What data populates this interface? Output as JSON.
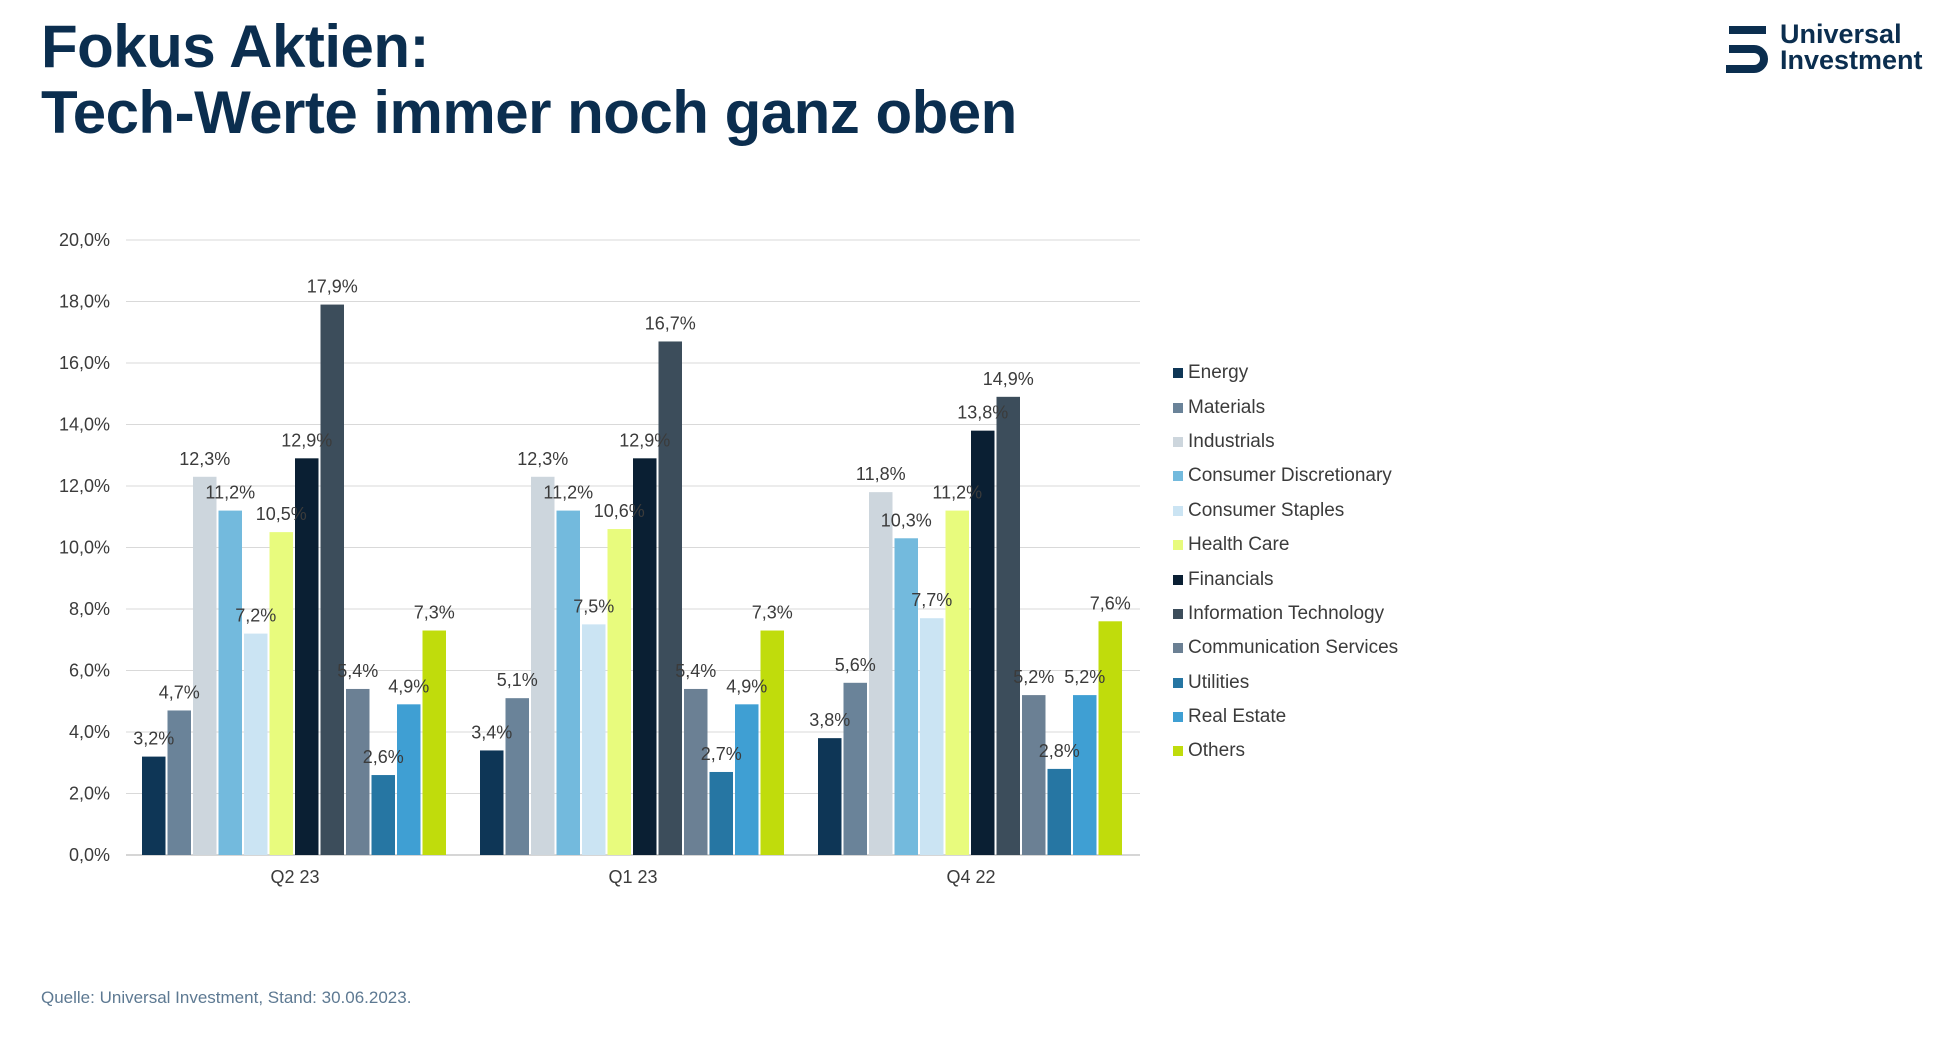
{
  "header": {
    "title_line1": "Fokus Aktien:",
    "title_line2": "Tech-Werte immer noch ganz oben"
  },
  "logo": {
    "line1": "Universal",
    "line2": "Investment",
    "icon": "universal-investment-logo-mark"
  },
  "footer": {
    "source": "Quelle: Universal Investment, Stand: 30.06.2023."
  },
  "chart_data": {
    "type": "bar",
    "categories": [
      "Q2 23",
      "Q1 23",
      "Q4 22"
    ],
    "ylim": [
      0,
      20
    ],
    "yticks": [
      "0,0%",
      "2,0%",
      "4,0%",
      "6,0%",
      "8,0%",
      "10,0%",
      "12,0%",
      "14,0%",
      "16,0%",
      "18,0%",
      "20,0%"
    ],
    "grid": true,
    "legend_position": "right",
    "series": [
      {
        "name": "Energy",
        "color": "#0e3656",
        "values": [
          3.2,
          3.4,
          3.8
        ],
        "labels": [
          "3,2%",
          "3,4%",
          "3,8%"
        ]
      },
      {
        "name": "Materials",
        "color": "#6a8399",
        "values": [
          4.7,
          5.1,
          5.6
        ],
        "labels": [
          "4,7%",
          "5,1%",
          "5,6%"
        ]
      },
      {
        "name": "Industrials",
        "color": "#cdd6dd",
        "values": [
          12.3,
          12.3,
          11.8
        ],
        "labels": [
          "12,3%",
          "12,3%",
          "11,8%"
        ]
      },
      {
        "name": "Consumer Discretionary",
        "color": "#73badd",
        "values": [
          11.2,
          11.2,
          10.3
        ],
        "labels": [
          "11,2%",
          "11,2%",
          "10,3%"
        ]
      },
      {
        "name": "Consumer Staples",
        "color": "#cbe4f3",
        "values": [
          7.2,
          7.5,
          7.7
        ],
        "labels": [
          "7,2%",
          "7,5%",
          "7,7%"
        ]
      },
      {
        "name": "Health Care",
        "color": "#e8fb7d",
        "values": [
          10.5,
          10.6,
          11.2
        ],
        "labels": [
          "10,5%",
          "10,6%",
          "11,2%"
        ]
      },
      {
        "name": "Financials",
        "color": "#0a1f33",
        "values": [
          12.9,
          12.9,
          13.8
        ],
        "labels": [
          "12,9%",
          "12,9%",
          "13,8%"
        ]
      },
      {
        "name": "Information Technology",
        "color": "#3c4d5b",
        "values": [
          17.9,
          16.7,
          14.9
        ],
        "labels": [
          "17,9%",
          "16,7%",
          "14,9%"
        ]
      },
      {
        "name": "Communication Services",
        "color": "#6b8094",
        "values": [
          5.4,
          5.4,
          5.2
        ],
        "labels": [
          "5,4%",
          "5,4%",
          "5,2%"
        ]
      },
      {
        "name": "Utilities",
        "color": "#2676a3",
        "values": [
          2.6,
          2.7,
          2.8
        ],
        "labels": [
          "2,6%",
          "2,7%",
          "2,8%"
        ]
      },
      {
        "name": "Real Estate",
        "color": "#3f9fd3",
        "values": [
          4.9,
          4.9,
          5.2
        ],
        "labels": [
          "4,9%",
          "4,9%",
          "5,2%"
        ]
      },
      {
        "name": "Others",
        "color": "#c0dc0c",
        "values": [
          7.3,
          7.3,
          7.6
        ],
        "labels": [
          "7,3%",
          "7,3%",
          "7,6%"
        ]
      }
    ]
  }
}
